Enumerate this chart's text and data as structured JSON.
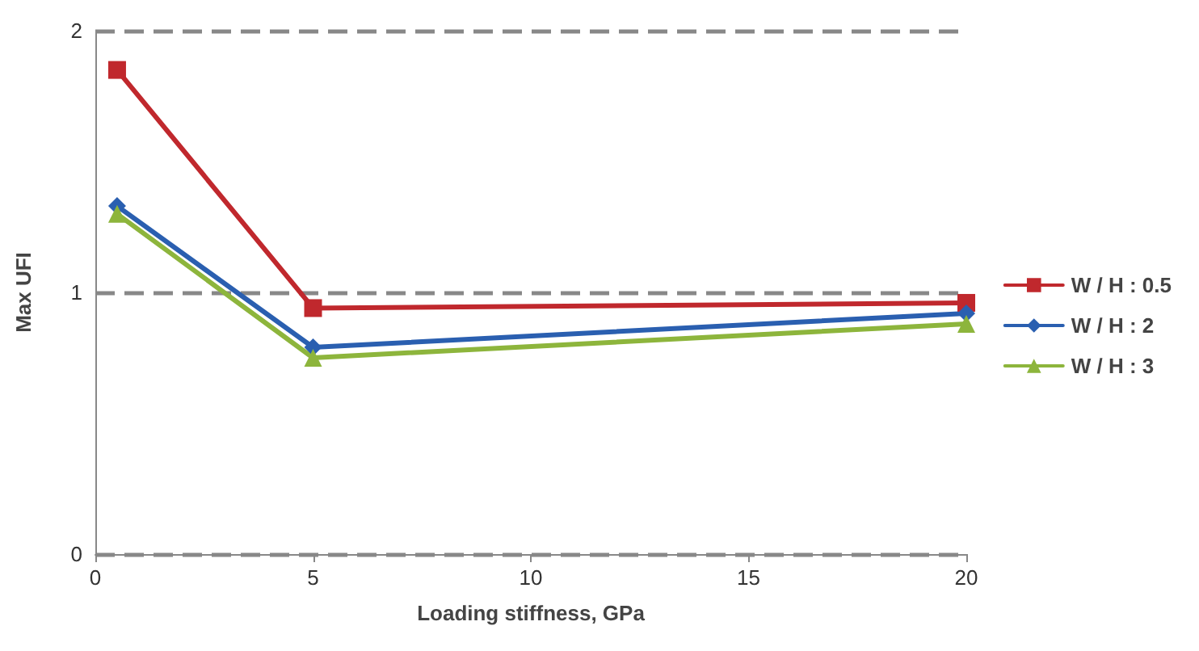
{
  "chart_data": {
    "type": "line",
    "xlabel": "Loading stiffness, GPa",
    "ylabel": "Max UFI",
    "x": [
      0.5,
      5,
      20
    ],
    "series": [
      {
        "name": "W / H : 0.5",
        "color": "#c0282d",
        "marker": "square",
        "values": [
          1.85,
          0.94,
          0.96
        ]
      },
      {
        "name": "W / H : 2",
        "color": "#2a5fb0",
        "marker": "diamond",
        "values": [
          1.33,
          0.79,
          0.92
        ]
      },
      {
        "name": "W / H : 3",
        "color": "#8db53c",
        "marker": "triangle",
        "values": [
          1.3,
          0.75,
          0.88
        ]
      }
    ],
    "xlim": [
      0,
      20
    ],
    "xticks": [
      0,
      5,
      10,
      15,
      20
    ],
    "ylim": [
      0,
      2
    ],
    "yticks": [
      0,
      1,
      2
    ],
    "grid": "y",
    "legend": "right",
    "line_style": "solid"
  }
}
